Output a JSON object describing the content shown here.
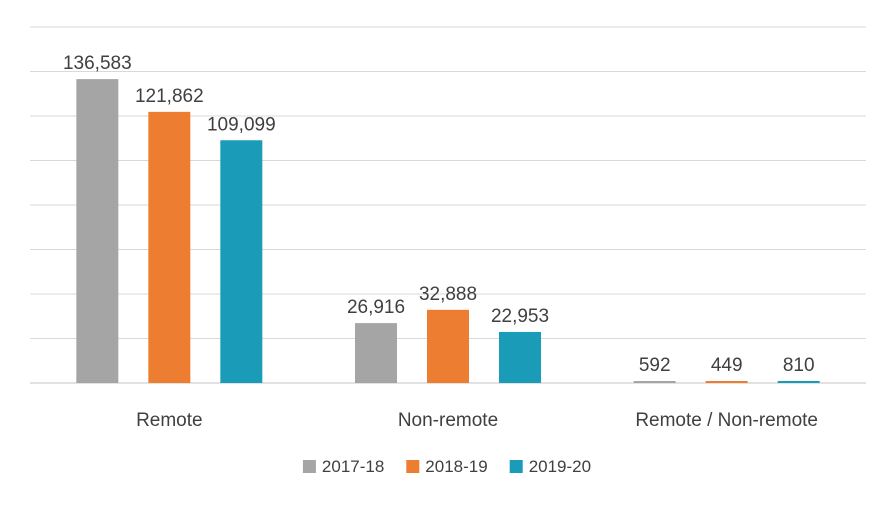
{
  "chart_data": {
    "type": "bar",
    "title": "",
    "xlabel": "",
    "ylabel": "",
    "categories": [
      "Remote",
      "Non-remote",
      "Remote / Non-remote"
    ],
    "series": [
      {
        "name": "2017-18",
        "color": "#a5a5a5",
        "values": [
          136583,
          26916,
          592
        ],
        "labels": [
          "136,583",
          "26,916",
          "592"
        ]
      },
      {
        "name": "2018-19",
        "color": "#ed7d31",
        "values": [
          121862,
          32888,
          449
        ],
        "labels": [
          "121,862",
          "32,888",
          "449"
        ]
      },
      {
        "name": "2019-20",
        "color": "#1a9bb8",
        "values": [
          109099,
          22953,
          810
        ],
        "labels": [
          "109,099",
          "22,953",
          "810"
        ]
      }
    ],
    "ylim": [
      0,
      160000
    ],
    "ytick_step": 20000,
    "grid": true,
    "legend_position": "bottom"
  }
}
